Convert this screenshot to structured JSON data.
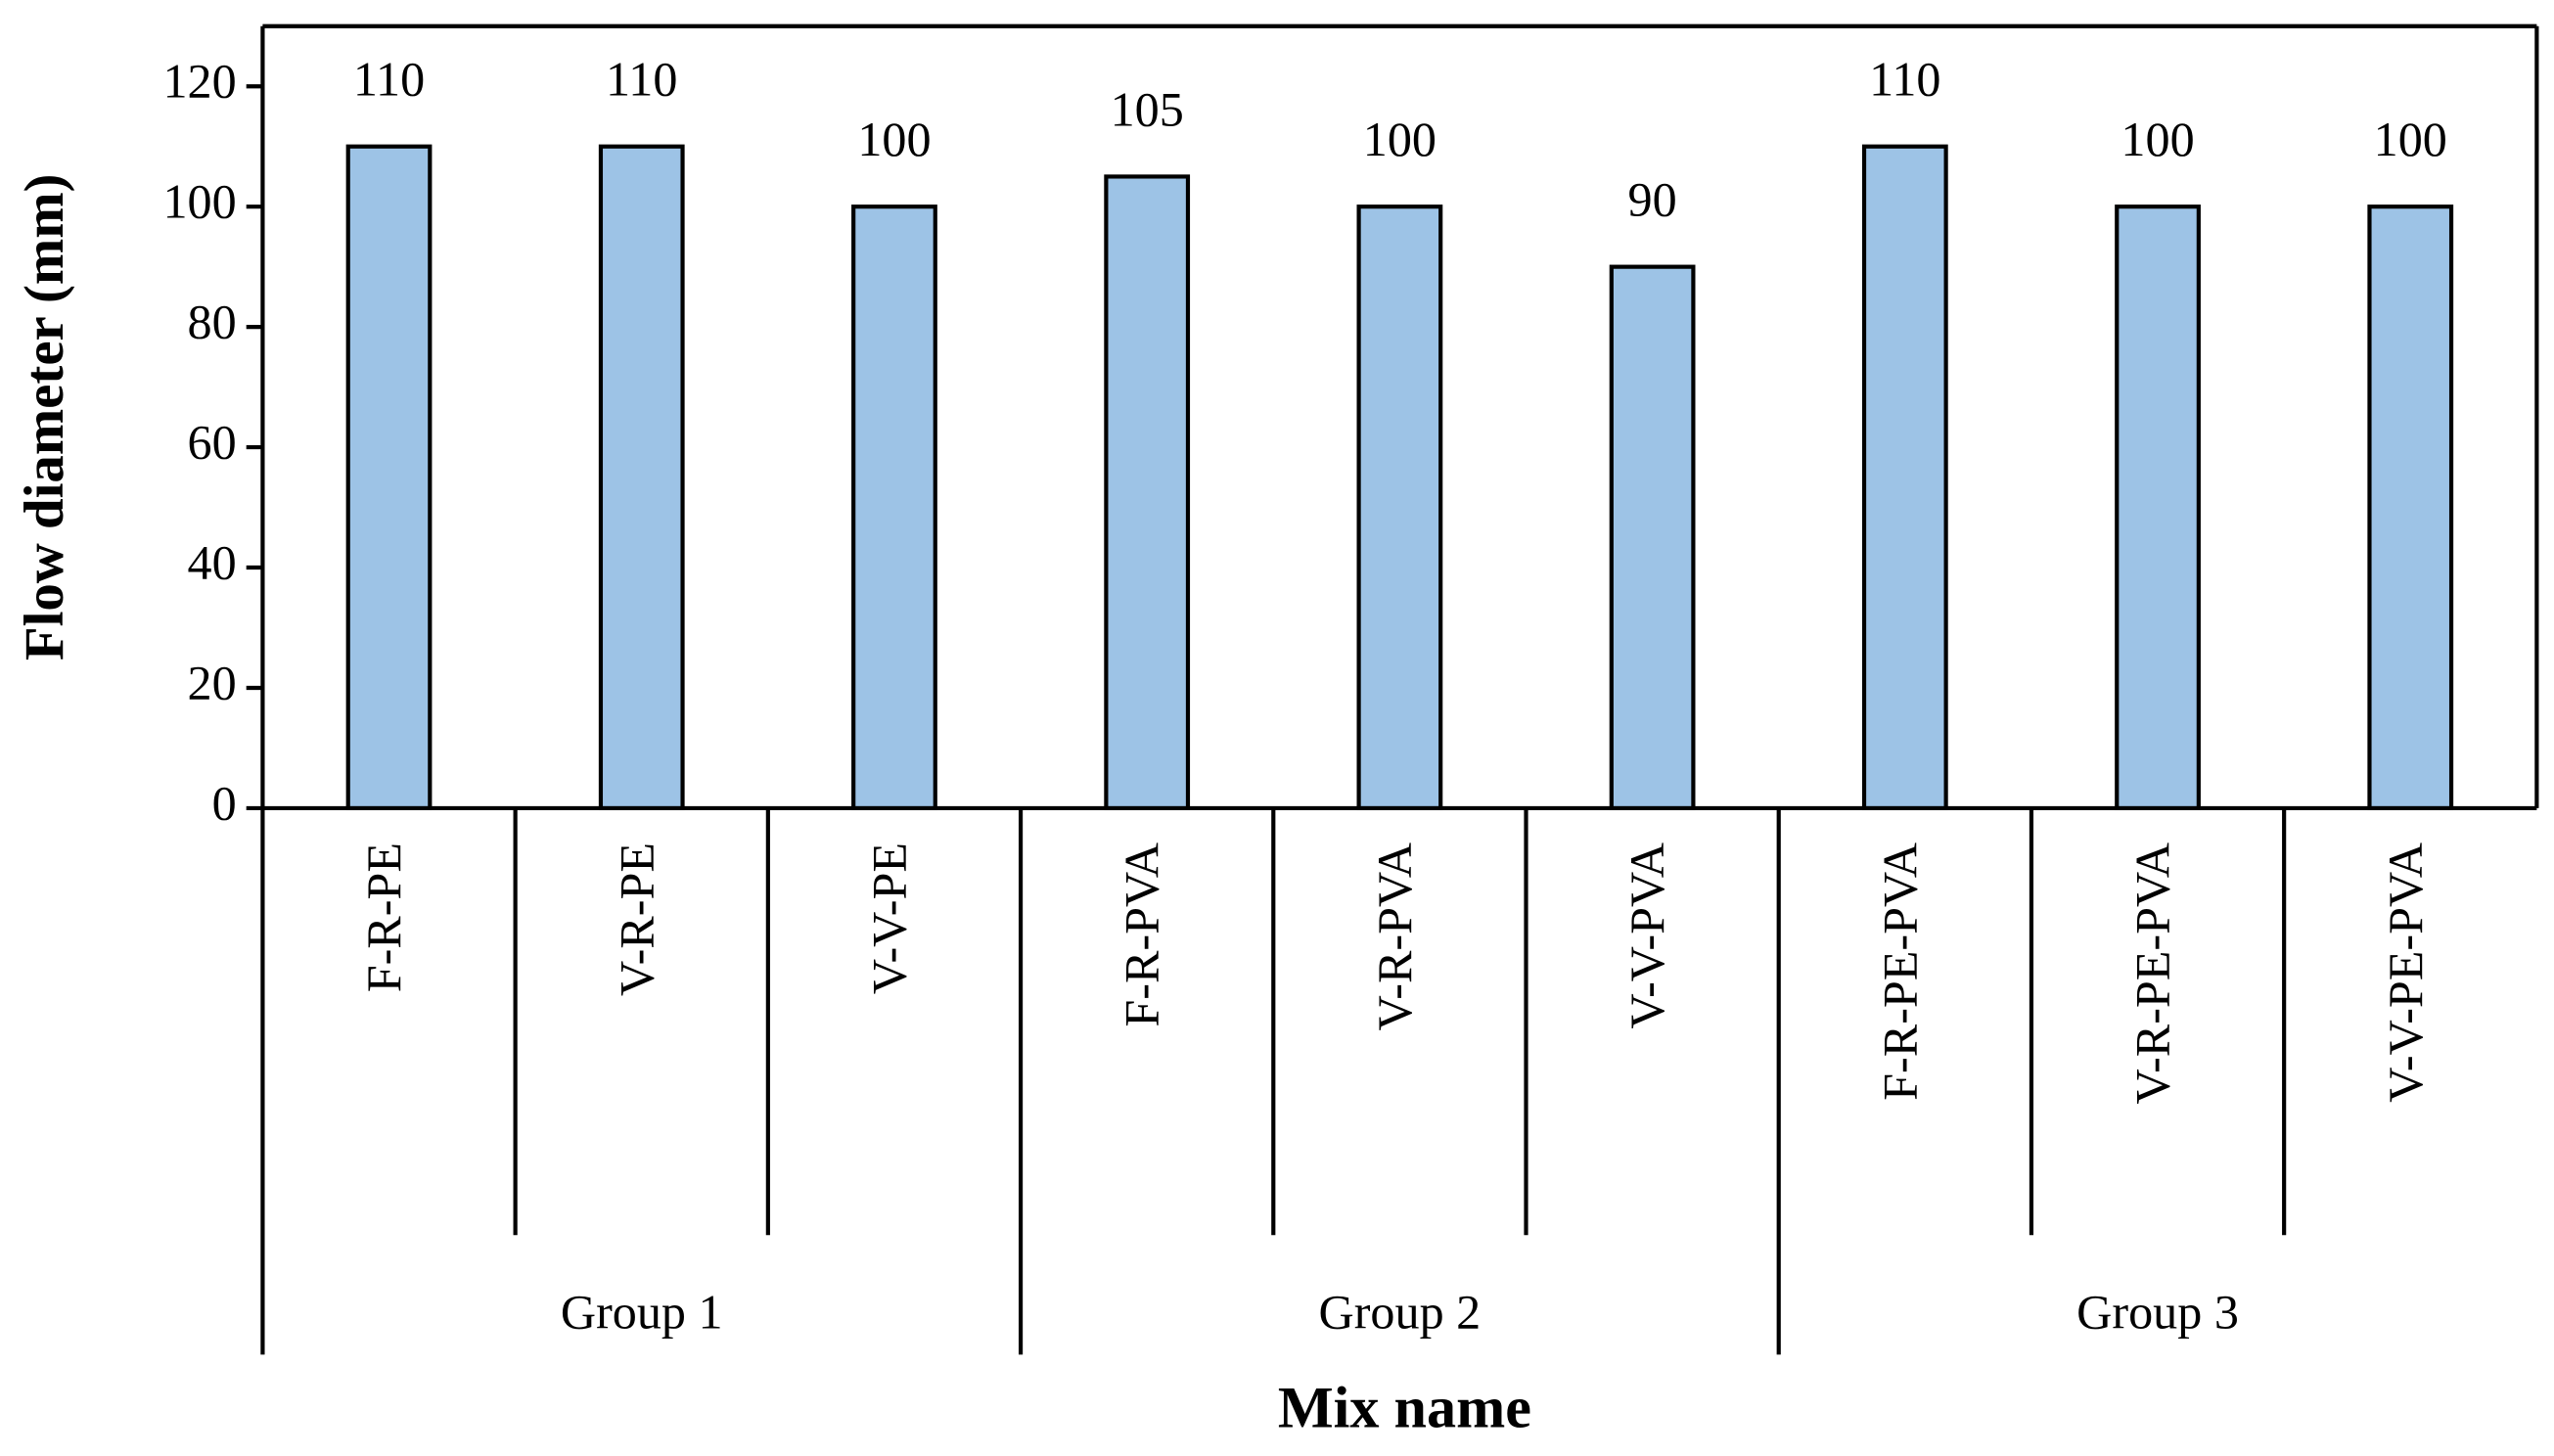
{
  "chart_data": {
    "type": "bar",
    "y_axis_label": "Flow diameter (mm)",
    "x_axis_label": "Mix name",
    "groups": [
      {
        "name": "Group 1",
        "categories": [
          "F-R-PE",
          "V-R-PE",
          "V-V-PE"
        ]
      },
      {
        "name": "Group 2",
        "categories": [
          "F-R-PVA",
          "V-R-PVA",
          "V-V-PVA"
        ]
      },
      {
        "name": "Group 3",
        "categories": [
          "F-R-PE-PVA",
          "V-R-PE-PVA",
          "V-V-PE-PVA"
        ]
      }
    ],
    "values": [
      110,
      110,
      100,
      105,
      100,
      90,
      110,
      100,
      100
    ],
    "color": "#9dc3e6",
    "ylim": [
      0,
      130
    ],
    "yticks": [
      0,
      20,
      40,
      60,
      80,
      100,
      120
    ],
    "grid": false
  }
}
